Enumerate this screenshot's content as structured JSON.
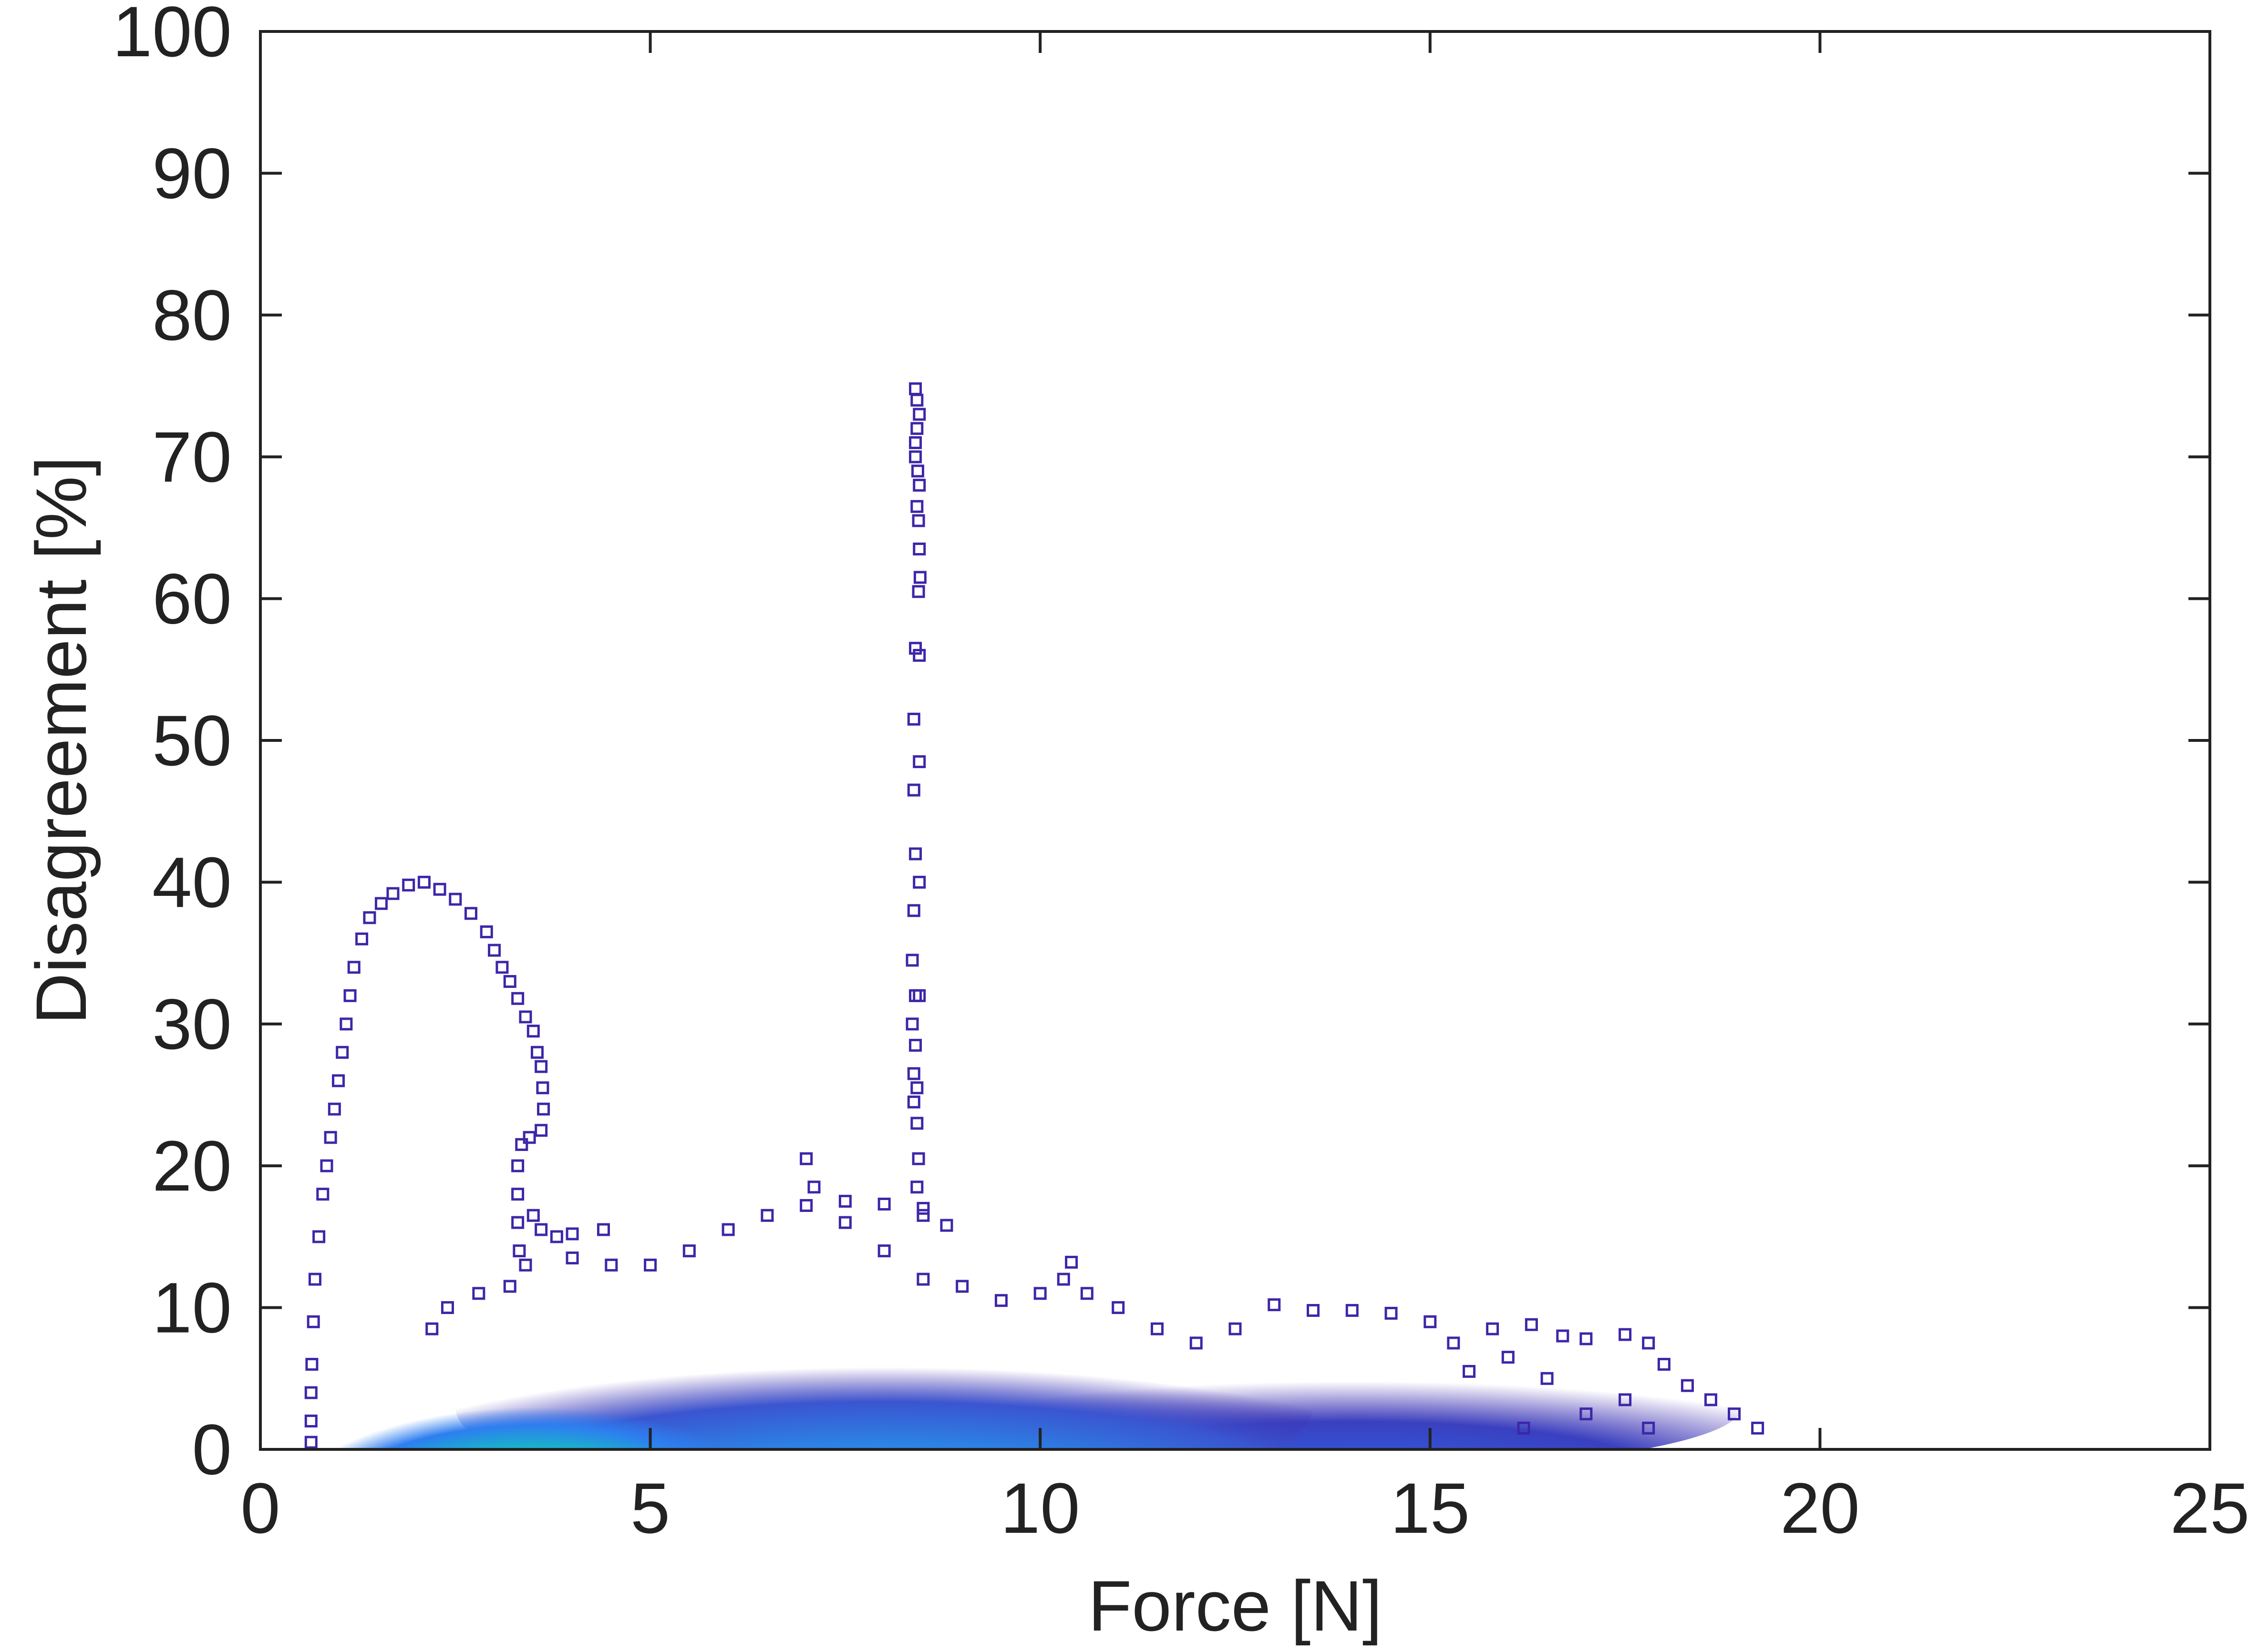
{
  "chart_data": {
    "type": "scatter",
    "xlabel": "Force [N]",
    "ylabel": "Disagreement [%]",
    "xlim": [
      0,
      25
    ],
    "ylim": [
      0,
      100
    ],
    "xticks": [
      0,
      5,
      10,
      15,
      20,
      25
    ],
    "yticks": [
      0,
      10,
      20,
      30,
      40,
      50,
      60,
      70,
      80,
      90,
      100
    ],
    "grid": false,
    "legend": "none",
    "marker": "open-square",
    "colormap": "parula (density: dark blue low, yellow high)",
    "colors": {
      "low_density": "#3e26a8",
      "mid_low": "#2e7ef0",
      "mid": "#16b8c7",
      "mid_high": "#a6c93a",
      "high_density": "#f9fb0e",
      "axes": "#222222"
    },
    "series": [
      {
        "values_description_free": true,
        "points": [
          [
            0.65,
            0.5
          ],
          [
            0.65,
            2
          ],
          [
            0.65,
            4
          ],
          [
            0.66,
            6
          ],
          [
            0.68,
            9
          ],
          [
            0.7,
            12
          ],
          [
            0.75,
            15
          ],
          [
            0.8,
            18
          ],
          [
            0.85,
            20
          ],
          [
            0.9,
            22
          ],
          [
            0.95,
            24
          ],
          [
            1.0,
            26
          ],
          [
            1.05,
            28
          ],
          [
            1.1,
            30
          ],
          [
            1.15,
            32
          ],
          [
            1.2,
            34
          ],
          [
            1.3,
            36
          ],
          [
            1.4,
            37.5
          ],
          [
            1.55,
            38.5
          ],
          [
            1.7,
            39.2
          ],
          [
            1.9,
            39.8
          ],
          [
            2.1,
            40
          ],
          [
            2.3,
            39.5
          ],
          [
            2.5,
            38.8
          ],
          [
            2.7,
            37.8
          ],
          [
            2.9,
            36.5
          ],
          [
            3.0,
            35.2
          ],
          [
            3.1,
            34
          ],
          [
            3.2,
            33
          ],
          [
            3.3,
            31.8
          ],
          [
            3.4,
            30.5
          ],
          [
            3.5,
            29.5
          ],
          [
            3.55,
            28
          ],
          [
            3.6,
            27
          ],
          [
            3.62,
            25.5
          ],
          [
            3.63,
            24
          ],
          [
            3.6,
            22.5
          ],
          [
            3.45,
            22
          ],
          [
            3.35,
            21.5
          ],
          [
            3.3,
            20
          ],
          [
            3.3,
            18
          ],
          [
            3.3,
            16
          ],
          [
            3.32,
            14
          ],
          [
            3.4,
            13
          ],
          [
            3.5,
            16.5
          ],
          [
            3.6,
            15.5
          ],
          [
            3.8,
            15
          ],
          [
            4.0,
            15.2
          ],
          [
            4.4,
            15.5
          ],
          [
            4.0,
            13.5
          ],
          [
            4.5,
            13
          ],
          [
            3.2,
            11.5
          ],
          [
            2.8,
            11
          ],
          [
            2.4,
            10
          ],
          [
            2.2,
            8.5
          ],
          [
            8.4,
            74.8
          ],
          [
            8.42,
            74
          ],
          [
            8.45,
            73
          ],
          [
            8.42,
            72
          ],
          [
            8.4,
            71
          ],
          [
            8.4,
            70
          ],
          [
            8.43,
            69
          ],
          [
            8.45,
            68
          ],
          [
            8.42,
            66.5
          ],
          [
            8.44,
            65.5
          ],
          [
            8.45,
            63.5
          ],
          [
            8.46,
            61.5
          ],
          [
            8.44,
            60.5
          ],
          [
            8.4,
            56.5
          ],
          [
            8.45,
            56
          ],
          [
            8.38,
            51.5
          ],
          [
            8.45,
            48.5
          ],
          [
            8.38,
            46.5
          ],
          [
            8.4,
            42
          ],
          [
            8.45,
            40
          ],
          [
            8.38,
            38
          ],
          [
            8.36,
            34.5
          ],
          [
            8.4,
            32
          ],
          [
            8.45,
            32
          ],
          [
            8.36,
            30
          ],
          [
            8.4,
            28.5
          ],
          [
            8.38,
            26.5
          ],
          [
            8.42,
            25.5
          ],
          [
            8.38,
            24.5
          ],
          [
            8.42,
            23
          ],
          [
            8.44,
            20.5
          ],
          [
            8.42,
            18.5
          ],
          [
            8.5,
            17
          ],
          [
            5.0,
            13
          ],
          [
            5.5,
            14
          ],
          [
            6.0,
            15.5
          ],
          [
            6.5,
            16.5
          ],
          [
            7.0,
            17.2
          ],
          [
            7.5,
            17.5
          ],
          [
            8.0,
            17.3
          ],
          [
            8.5,
            16.5
          ],
          [
            8.8,
            15.8
          ],
          [
            7.0,
            20.5
          ],
          [
            7.1,
            18.5
          ],
          [
            7.5,
            16
          ],
          [
            8.0,
            14
          ],
          [
            8.5,
            12
          ],
          [
            9.0,
            11.5
          ],
          [
            9.5,
            10.5
          ],
          [
            10.0,
            11
          ],
          [
            10.3,
            12
          ],
          [
            10.4,
            13.2
          ],
          [
            10.6,
            11
          ],
          [
            11.0,
            10
          ],
          [
            11.5,
            8.5
          ],
          [
            12.0,
            7.5
          ],
          [
            12.5,
            8.5
          ],
          [
            13.0,
            10.2
          ],
          [
            13.5,
            9.8
          ],
          [
            14.0,
            9.8
          ],
          [
            14.5,
            9.6
          ],
          [
            15.0,
            9
          ],
          [
            15.3,
            7.5
          ],
          [
            15.8,
            8.5
          ],
          [
            16.3,
            8.8
          ],
          [
            16.7,
            8
          ],
          [
            17.0,
            7.8
          ],
          [
            17.5,
            8.1
          ],
          [
            17.8,
            7.5
          ],
          [
            18.0,
            6
          ],
          [
            18.3,
            4.5
          ],
          [
            18.6,
            3.5
          ],
          [
            18.9,
            2.5
          ],
          [
            19.2,
            1.5
          ],
          [
            17.5,
            3.5
          ],
          [
            17.0,
            2.5
          ],
          [
            16.5,
            5
          ],
          [
            16.0,
            6.5
          ],
          [
            15.5,
            5.5
          ],
          [
            16.2,
            1.5
          ],
          [
            17.8,
            1.5
          ]
        ]
      }
    ],
    "density_clouds": [
      {
        "cx": 3.5,
        "cy": 1.0,
        "rx": 2.6,
        "ry": 6.5,
        "level": "high"
      },
      {
        "cx": 8.0,
        "cy": 3.0,
        "rx": 5.5,
        "ry": 7.0,
        "level": "mid"
      },
      {
        "cx": 14.0,
        "cy": 3.0,
        "rx": 5.0,
        "ry": 4.5,
        "level": "low"
      }
    ]
  }
}
